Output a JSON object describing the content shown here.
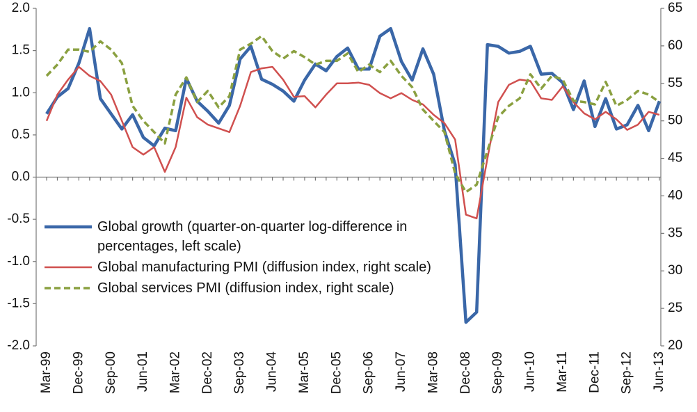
{
  "chart_data": {
    "type": "line",
    "categories": [
      "Mar-99",
      null,
      null,
      "Dec-99",
      null,
      null,
      "Sep-00",
      null,
      null,
      "Jun-01",
      null,
      null,
      "Mar-02",
      null,
      null,
      "Dec-02",
      null,
      null,
      "Sep-03",
      null,
      null,
      "Jun-04",
      null,
      null,
      "Mar-05",
      null,
      null,
      "Dec-05",
      null,
      null,
      "Sep-06",
      null,
      null,
      "Jun-07",
      null,
      null,
      "Mar-08",
      null,
      null,
      "Dec-08",
      null,
      null,
      "Sep-09",
      null,
      null,
      "Jun-10",
      null,
      null,
      "Mar-11",
      null,
      null,
      "Dec-11",
      null,
      null,
      "Sep-12",
      null,
      null,
      "Jun-13"
    ],
    "series": [
      {
        "name": "Global growth (quarter-on-quarter log-difference in percentages, left scale)",
        "color": "#3a67a8",
        "values": [
          0.75,
          0.95,
          1.05,
          1.35,
          1.76,
          0.93,
          0.75,
          0.57,
          0.74,
          0.47,
          0.37,
          0.58,
          0.55,
          1.17,
          0.9,
          0.78,
          0.64,
          0.85,
          1.4,
          1.55,
          1.16,
          1.1,
          1.02,
          0.9,
          1.15,
          1.34,
          1.26,
          1.43,
          1.53,
          1.28,
          1.28,
          1.67,
          1.76,
          1.37,
          1.15,
          1.52,
          1.22,
          0.55,
          0.15,
          -1.72,
          -1.6,
          1.57,
          1.55,
          1.47,
          1.49,
          1.55,
          1.22,
          1.23,
          1.12,
          0.8,
          1.14,
          0.6,
          0.93,
          0.57,
          0.62,
          0.85,
          0.55,
          0.9
        ]
      },
      {
        "name": "Global manufacturing PMI (diffusion index, right scale)",
        "color": "#d0504f",
        "axis": "y2",
        "values": [
          50,
          53.5,
          55.5,
          57.2,
          56,
          55.3,
          53.5,
          50,
          46.5,
          45.5,
          46.5,
          43.2,
          46.5,
          53.1,
          50.5,
          49.5,
          49,
          48.5,
          52,
          56.5,
          57,
          57.2,
          55.5,
          53.2,
          53.3,
          51.8,
          53.5,
          55,
          55,
          55.1,
          54.8,
          53.7,
          53,
          53.7,
          52.8,
          52.2,
          50.8,
          49.7,
          47.5,
          37.5,
          37,
          45,
          52.5,
          54.8,
          55.5,
          55.3,
          53,
          52.8,
          54.6,
          52.5,
          51,
          50.2,
          51.2,
          50.2,
          48.8,
          49.5,
          51.2,
          50.8
        ]
      },
      {
        "name": "Global services PMI (diffusion index, right scale)",
        "color": "#8aa040",
        "axis": "y2",
        "dashed": true,
        "values": [
          56,
          57.5,
          59.5,
          59.5,
          59.2,
          60.6,
          59.5,
          57.7,
          52,
          50,
          48.5,
          47,
          53.5,
          55.8,
          52.5,
          54,
          51.8,
          53.3,
          59.5,
          60.3,
          61.3,
          59.3,
          58.3,
          59.3,
          58.5,
          57.5,
          58,
          58,
          59,
          56.5,
          57.5,
          56.5,
          58,
          56,
          54.5,
          51.5,
          50,
          48.5,
          43,
          40.5,
          41.5,
          46,
          50.5,
          52,
          53,
          56.2,
          54.3,
          56,
          55.5,
          52.7,
          52.5,
          52.2,
          55.2,
          52,
          52.8,
          54,
          53.5,
          52.5
        ]
      }
    ],
    "ylim": [
      -2,
      2
    ],
    "yticks": [
      {
        "value": -2,
        "label": "-2.0"
      },
      -1.5,
      {
        "value": -1,
        "label": "-1.0"
      },
      -0.5,
      {
        "value": 0,
        "label": "0.0"
      },
      0.5,
      {
        "value": 1,
        "label": "1.0"
      },
      1.5,
      {
        "value": 2,
        "label": "2.0"
      }
    ],
    "y2lim": [
      20,
      65
    ],
    "y2ticks": [
      20,
      25,
      30,
      35,
      40,
      45,
      50,
      55,
      60,
      65
    ],
    "legend": "left"
  }
}
